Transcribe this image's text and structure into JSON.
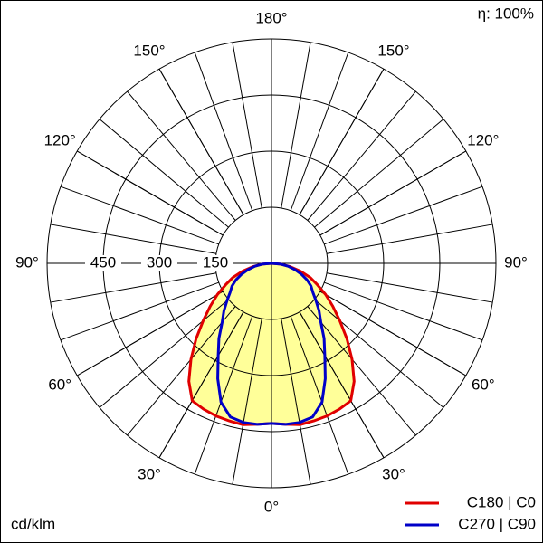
{
  "chart_data": {
    "type": "polar",
    "efficiency_label": "η: 100%",
    "unit_label": "cd/klm",
    "rlim": [
      0,
      600
    ],
    "rticks": [
      150,
      300,
      450
    ],
    "angle_ticks": [
      {
        "value": 0,
        "label": "0°"
      },
      {
        "value": 30,
        "label": "30°"
      },
      {
        "value": 60,
        "label": "60°"
      },
      {
        "value": 90,
        "label": "90°"
      },
      {
        "value": 120,
        "label": "120°"
      },
      {
        "value": 150,
        "label": "150°"
      },
      {
        "value": 180,
        "label": "180°"
      }
    ],
    "fill_color": "#ffff99",
    "gamma": [
      0,
      5,
      10,
      15,
      20,
      25,
      30,
      35,
      40,
      45,
      50,
      55,
      60,
      65,
      70,
      75,
      80,
      85,
      90
    ],
    "series": [
      {
        "name": "C180 | C0",
        "color": "#e00000",
        "values": [
          428,
          432,
          438,
          436,
          434,
          430,
          424,
          385,
          335,
          285,
          238,
          200,
          167,
          135,
          110,
          80,
          50,
          25,
          0
        ]
      },
      {
        "name": "C270 | C90",
        "color": "#0000c8",
        "values": [
          428,
          432,
          432,
          425,
          395,
          340,
          285,
          245,
          205,
          180,
          155,
          135,
          122,
          105,
          85,
          65,
          45,
          25,
          0
        ]
      }
    ]
  }
}
